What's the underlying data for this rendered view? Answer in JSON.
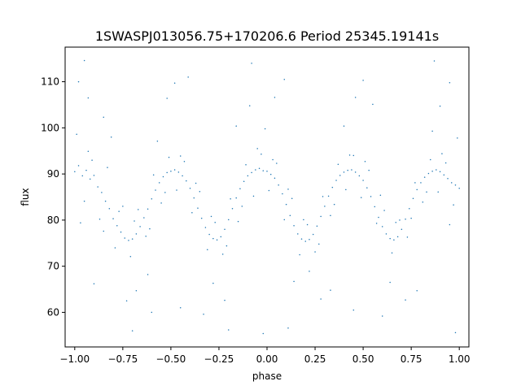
{
  "chart_data": {
    "type": "scatter",
    "title": "1SWASPJ013056.75+170206.6 Period 25345.19141s",
    "xlabel": "phase",
    "ylabel": "flux",
    "xlim": [
      -1.05,
      1.05
    ],
    "ylim": [
      52.5,
      117.5
    ],
    "xticks": [
      {
        "value": -1.0,
        "label": "−1.00"
      },
      {
        "value": -0.75,
        "label": "−0.75"
      },
      {
        "value": -0.5,
        "label": "−0.50"
      },
      {
        "value": -0.25,
        "label": "−0.25"
      },
      {
        "value": 0.0,
        "label": "0.00"
      },
      {
        "value": 0.25,
        "label": "0.25"
      },
      {
        "value": 0.5,
        "label": "0.50"
      },
      {
        "value": 0.75,
        "label": "0.75"
      },
      {
        "value": 1.0,
        "label": "1.00"
      }
    ],
    "yticks": [
      {
        "value": 60,
        "label": "60"
      },
      {
        "value": 70,
        "label": "70"
      },
      {
        "value": 80,
        "label": "80"
      },
      {
        "value": 90,
        "label": "90"
      },
      {
        "value": 100,
        "label": "100"
      },
      {
        "value": 110,
        "label": "110"
      }
    ],
    "series": [
      {
        "color": "#1f77b4",
        "points": [
          [
            -1.0,
            90.5
          ],
          [
            -0.98,
            91.8
          ],
          [
            -0.96,
            89.6
          ],
          [
            -0.94,
            90.8
          ],
          [
            -0.92,
            88.9
          ],
          [
            -0.9,
            89.7
          ],
          [
            -0.88,
            87.2
          ],
          [
            -0.86,
            86.0
          ],
          [
            -0.84,
            84.1
          ],
          [
            -0.82,
            82.5
          ],
          [
            -0.8,
            80.3
          ],
          [
            -0.78,
            78.8
          ],
          [
            -0.76,
            77.4
          ],
          [
            -0.74,
            76.1
          ],
          [
            -0.72,
            75.6
          ],
          [
            -0.7,
            75.9
          ],
          [
            -0.68,
            77.0
          ],
          [
            -0.66,
            78.6
          ],
          [
            -0.64,
            80.5
          ],
          [
            -0.62,
            82.4
          ],
          [
            -0.6,
            84.6
          ],
          [
            -0.58,
            86.5
          ],
          [
            -0.56,
            88.1
          ],
          [
            -0.54,
            89.4
          ],
          [
            -0.52,
            90.3
          ],
          [
            -0.5,
            90.6
          ],
          [
            -0.48,
            90.9
          ],
          [
            -0.46,
            90.4
          ],
          [
            -0.44,
            89.6
          ],
          [
            -0.42,
            88.5
          ],
          [
            -0.4,
            86.9
          ],
          [
            -0.38,
            84.8
          ],
          [
            -0.36,
            82.6
          ],
          [
            -0.34,
            80.4
          ],
          [
            -0.32,
            78.4
          ],
          [
            -0.3,
            76.9
          ],
          [
            -0.28,
            76.0
          ],
          [
            -0.26,
            75.7
          ],
          [
            -0.24,
            76.4
          ],
          [
            -0.22,
            78.0
          ],
          [
            -0.2,
            80.1
          ],
          [
            -0.18,
            82.5
          ],
          [
            -0.16,
            84.8
          ],
          [
            -0.14,
            86.8
          ],
          [
            -0.12,
            88.4
          ],
          [
            -0.1,
            89.6
          ],
          [
            -0.08,
            90.3
          ],
          [
            -0.06,
            90.9
          ],
          [
            -0.04,
            91.2
          ],
          [
            -0.02,
            90.7
          ],
          [
            0.0,
            90.6
          ],
          [
            0.02,
            89.9
          ],
          [
            0.04,
            89.1
          ],
          [
            0.06,
            87.6
          ],
          [
            0.08,
            85.7
          ],
          [
            0.1,
            83.4
          ],
          [
            0.12,
            81.0
          ],
          [
            0.14,
            78.8
          ],
          [
            0.16,
            77.0
          ],
          [
            0.18,
            75.9
          ],
          [
            0.2,
            75.4
          ],
          [
            0.22,
            75.8
          ],
          [
            0.24,
            76.9
          ],
          [
            0.26,
            78.7
          ],
          [
            0.28,
            80.8
          ],
          [
            0.3,
            83.0
          ],
          [
            0.32,
            85.2
          ],
          [
            0.34,
            87.1
          ],
          [
            0.36,
            88.6
          ],
          [
            0.38,
            89.7
          ],
          [
            0.4,
            90.4
          ],
          [
            0.42,
            90.8
          ],
          [
            0.44,
            90.9
          ],
          [
            0.46,
            90.4
          ],
          [
            0.48,
            89.6
          ],
          [
            0.5,
            88.6
          ],
          [
            0.52,
            87.0
          ],
          [
            0.54,
            85.1
          ],
          [
            0.56,
            82.9
          ],
          [
            0.58,
            80.6
          ],
          [
            0.6,
            78.6
          ],
          [
            0.62,
            77.0
          ],
          [
            0.64,
            76.0
          ],
          [
            0.66,
            75.7
          ],
          [
            0.68,
            76.4
          ],
          [
            0.7,
            78.0
          ],
          [
            0.72,
            80.2
          ],
          [
            0.74,
            82.5
          ],
          [
            0.76,
            84.7
          ],
          [
            0.78,
            86.6
          ],
          [
            0.8,
            88.1
          ],
          [
            0.82,
            89.3
          ],
          [
            0.84,
            90.1
          ],
          [
            0.86,
            90.6
          ],
          [
            0.88,
            90.9
          ],
          [
            0.9,
            90.5
          ],
          [
            0.92,
            89.8
          ],
          [
            0.94,
            89.0
          ],
          [
            0.96,
            88.1
          ],
          [
            0.98,
            87.6
          ],
          [
            1.0,
            86.9
          ],
          [
            -0.99,
            98.6
          ],
          [
            -0.95,
            84.1
          ],
          [
            -0.91,
            93.0
          ],
          [
            -0.87,
            80.2
          ],
          [
            -0.83,
            91.4
          ],
          [
            -0.79,
            74.0
          ],
          [
            -0.75,
            83.0
          ],
          [
            -0.71,
            72.1
          ],
          [
            -0.67,
            82.3
          ],
          [
            -0.63,
            76.5
          ],
          [
            -0.59,
            89.8
          ],
          [
            -0.55,
            83.7
          ],
          [
            -0.51,
            93.6
          ],
          [
            -0.47,
            86.5
          ],
          [
            -0.43,
            92.7
          ],
          [
            -0.39,
            81.6
          ],
          [
            -0.35,
            86.2
          ],
          [
            -0.31,
            73.6
          ],
          [
            -0.27,
            79.5
          ],
          [
            -0.23,
            72.6
          ],
          [
            -0.19,
            84.6
          ],
          [
            -0.15,
            79.7
          ],
          [
            -0.11,
            92.0
          ],
          [
            -0.07,
            85.2
          ],
          [
            -0.03,
            94.3
          ],
          [
            0.01,
            86.4
          ],
          [
            0.05,
            92.3
          ],
          [
            0.09,
            80.1
          ],
          [
            0.13,
            84.7
          ],
          [
            0.17,
            72.5
          ],
          [
            0.21,
            79.0
          ],
          [
            0.25,
            73.1
          ],
          [
            0.29,
            85.1
          ],
          [
            0.33,
            81.0
          ],
          [
            0.37,
            92.1
          ],
          [
            0.41,
            86.6
          ],
          [
            0.45,
            94.0
          ],
          [
            0.49,
            84.9
          ],
          [
            0.53,
            90.8
          ],
          [
            0.57,
            79.3
          ],
          [
            0.61,
            82.1
          ],
          [
            0.65,
            72.9
          ],
          [
            0.69,
            80.0
          ],
          [
            0.73,
            76.3
          ],
          [
            0.77,
            88.1
          ],
          [
            0.81,
            83.9
          ],
          [
            0.85,
            93.1
          ],
          [
            0.89,
            86.1
          ],
          [
            0.93,
            92.4
          ],
          [
            0.97,
            83.3
          ],
          [
            0.99,
            97.8
          ],
          [
            -0.97,
            79.4
          ],
          [
            -0.93,
            94.9
          ],
          [
            -0.85,
            77.6
          ],
          [
            -0.77,
            81.9
          ],
          [
            -0.69,
            79.8
          ],
          [
            -0.61,
            78.1
          ],
          [
            -0.53,
            86.0
          ],
          [
            -0.45,
            93.9
          ],
          [
            -0.37,
            88.0
          ],
          [
            -0.29,
            80.8
          ],
          [
            -0.21,
            74.4
          ],
          [
            -0.13,
            83.0
          ],
          [
            -0.05,
            95.5
          ],
          [
            0.03,
            93.1
          ],
          [
            0.11,
            86.7
          ],
          [
            0.19,
            80.1
          ],
          [
            0.27,
            74.8
          ],
          [
            0.35,
            83.4
          ],
          [
            0.43,
            94.1
          ],
          [
            0.51,
            92.7
          ],
          [
            0.59,
            85.4
          ],
          [
            0.67,
            79.5
          ],
          [
            0.75,
            80.4
          ],
          [
            0.83,
            86.1
          ],
          [
            0.91,
            94.4
          ],
          [
            0.95,
            79.0
          ],
          [
            -0.98,
            110.0
          ],
          [
            -0.93,
            106.5
          ],
          [
            -0.9,
            66.2
          ],
          [
            -0.85,
            102.3
          ],
          [
            -0.81,
            98.0
          ],
          [
            -0.73,
            62.5
          ],
          [
            -0.68,
            64.7
          ],
          [
            -0.62,
            68.2
          ],
          [
            -0.57,
            97.1
          ],
          [
            -0.52,
            106.4
          ],
          [
            -0.48,
            109.7
          ],
          [
            -0.41,
            111.0
          ],
          [
            -0.33,
            59.6
          ],
          [
            -0.28,
            66.3
          ],
          [
            -0.22,
            62.6
          ],
          [
            -0.16,
            100.4
          ],
          [
            -0.09,
            104.8
          ],
          [
            -0.01,
            99.8
          ],
          [
            0.04,
            106.6
          ],
          [
            0.09,
            110.5
          ],
          [
            0.14,
            66.7
          ],
          [
            0.22,
            68.9
          ],
          [
            0.28,
            62.9
          ],
          [
            0.33,
            64.8
          ],
          [
            0.4,
            100.4
          ],
          [
            0.46,
            106.6
          ],
          [
            0.5,
            110.3
          ],
          [
            0.55,
            105.1
          ],
          [
            0.64,
            66.5
          ],
          [
            0.72,
            62.7
          ],
          [
            0.78,
            64.7
          ],
          [
            0.86,
            99.3
          ],
          [
            0.9,
            104.7
          ],
          [
            0.95,
            109.8
          ],
          [
            -0.7,
            56.0
          ],
          [
            0.11,
            56.6
          ],
          [
            -0.2,
            56.2
          ],
          [
            0.98,
            55.6
          ],
          [
            -0.02,
            55.4
          ],
          [
            -0.95,
            114.6
          ],
          [
            0.87,
            114.5
          ],
          [
            -0.08,
            114.0
          ],
          [
            -0.6,
            60.0
          ],
          [
            0.6,
            59.2
          ],
          [
            0.45,
            60.5
          ],
          [
            -0.45,
            61.0
          ]
        ]
      }
    ]
  }
}
